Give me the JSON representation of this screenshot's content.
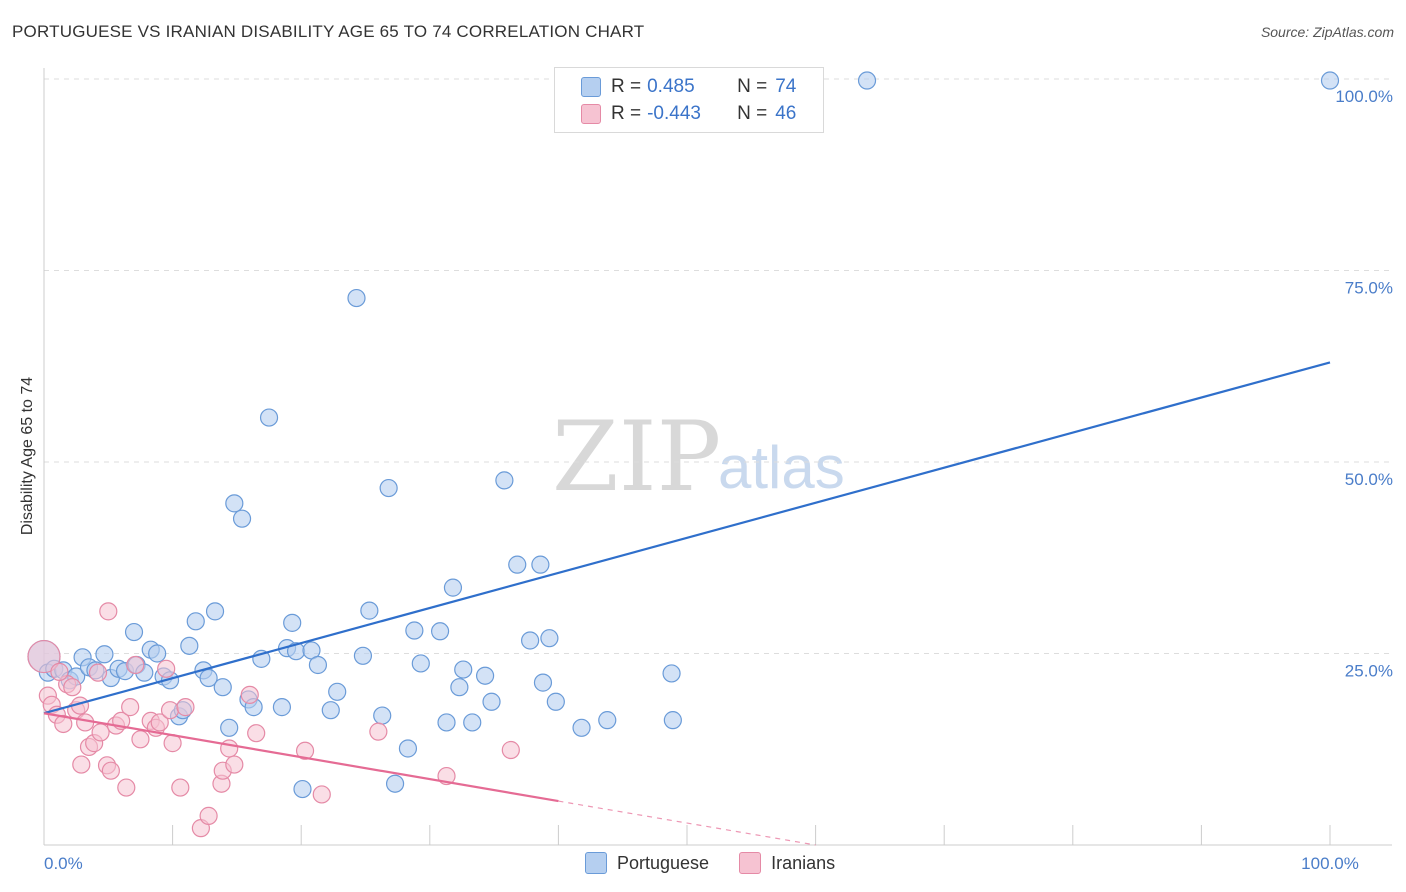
{
  "header": {
    "title": "PORTUGUESE VS IRANIAN DISABILITY AGE 65 TO 74 CORRELATION CHART",
    "source": "Source: ZipAtlas.com"
  },
  "watermark": {
    "zip": "ZIP",
    "atlas": "atlas"
  },
  "stats": {
    "r_label": "R =",
    "n_label": "N =",
    "portuguese": {
      "r": "0.485",
      "n": "74"
    },
    "iranians": {
      "r": "-0.443",
      "n": "46"
    }
  },
  "legend": {
    "portuguese": "Portuguese",
    "iranians": "Iranians"
  },
  "colors": {
    "portuguese_fill": "#b5cff0",
    "portuguese_stroke": "#6a9bd8",
    "portuguese_line": "#2f6fcb",
    "iranians_fill": "#f6c3d2",
    "iranians_stroke": "#e58aa6",
    "iranians_line": "#e56b94",
    "tick_text": "#4a7dc9",
    "grid": "#dddddd"
  },
  "chart_data": {
    "type": "scatter",
    "title": "PORTUGUESE VS IRANIAN DISABILITY AGE 65 TO 74 CORRELATION CHART",
    "xlabel": "",
    "ylabel": "Disability Age 65 to 74",
    "xlim": [
      0,
      100
    ],
    "ylim": [
      0,
      100
    ],
    "x_tick_labels": [
      {
        "v": 0,
        "label": "0.0%"
      },
      {
        "v": 100,
        "label": "100.0%"
      }
    ],
    "y_tick_labels": [
      {
        "v": 25,
        "label": "25.0%"
      },
      {
        "v": 50,
        "label": "50.0%"
      },
      {
        "v": 75,
        "label": "75.0%"
      },
      {
        "v": 100,
        "label": "100.0%"
      }
    ],
    "legend_position": "bottom",
    "series": [
      {
        "name": "Portuguese",
        "r": 0.485,
        "n": 74,
        "trend": {
          "x": [
            0,
            100
          ],
          "y": [
            17.2,
            63.0
          ],
          "dashed_from": null
        },
        "points": [
          [
            0,
            24.6
          ],
          [
            0.3,
            22.5
          ],
          [
            0.8,
            23.0
          ],
          [
            1.5,
            22.8
          ],
          [
            2,
            21.5
          ],
          [
            2.5,
            22.0
          ],
          [
            3,
            24.5
          ],
          [
            3.5,
            23.2
          ],
          [
            4,
            22.8
          ],
          [
            4.7,
            24.9
          ],
          [
            5.2,
            21.8
          ],
          [
            5.8,
            23.0
          ],
          [
            6.3,
            22.7
          ],
          [
            7,
            27.8
          ],
          [
            7.2,
            23.5
          ],
          [
            7.8,
            22.5
          ],
          [
            8.3,
            25.5
          ],
          [
            8.8,
            25.0
          ],
          [
            9.3,
            22.0
          ],
          [
            9.8,
            21.5
          ],
          [
            10.5,
            16.8
          ],
          [
            10.8,
            17.6
          ],
          [
            11.3,
            26.0
          ],
          [
            11.8,
            29.2
          ],
          [
            12.4,
            22.8
          ],
          [
            12.8,
            21.8
          ],
          [
            13.3,
            30.5
          ],
          [
            13.9,
            20.6
          ],
          [
            14.4,
            15.3
          ],
          [
            14.8,
            44.6
          ],
          [
            15.4,
            42.6
          ],
          [
            15.9,
            19.0
          ],
          [
            16.3,
            18.0
          ],
          [
            16.9,
            24.3
          ],
          [
            17.5,
            55.8
          ],
          [
            18.5,
            18.0
          ],
          [
            18.9,
            25.7
          ],
          [
            19.3,
            29.0
          ],
          [
            19.6,
            25.3
          ],
          [
            20.1,
            7.3
          ],
          [
            20.8,
            25.4
          ],
          [
            21.3,
            23.5
          ],
          [
            22.3,
            17.6
          ],
          [
            22.8,
            20.0
          ],
          [
            24.3,
            71.4
          ],
          [
            24.8,
            24.7
          ],
          [
            25.3,
            30.6
          ],
          [
            26.3,
            16.9
          ],
          [
            26.8,
            46.6
          ],
          [
            27.3,
            8.0
          ],
          [
            28.3,
            12.6
          ],
          [
            28.8,
            28.0
          ],
          [
            29.3,
            23.7
          ],
          [
            30.8,
            27.9
          ],
          [
            31.3,
            16.0
          ],
          [
            31.8,
            33.6
          ],
          [
            32.3,
            20.6
          ],
          [
            32.6,
            22.9
          ],
          [
            33.3,
            16.0
          ],
          [
            34.3,
            22.1
          ],
          [
            34.8,
            18.7
          ],
          [
            35.8,
            47.6
          ],
          [
            36.8,
            36.6
          ],
          [
            37.8,
            26.7
          ],
          [
            38.6,
            36.6
          ],
          [
            38.8,
            21.2
          ],
          [
            39.3,
            27.0
          ],
          [
            39.8,
            18.7
          ],
          [
            41.8,
            15.3
          ],
          [
            43.8,
            16.3
          ],
          [
            48.8,
            22.4
          ],
          [
            48.9,
            16.3
          ],
          [
            64,
            99.8
          ],
          [
            100,
            99.8
          ]
        ]
      },
      {
        "name": "Iranians",
        "r": -0.443,
        "n": 46,
        "trend": {
          "x": [
            0,
            60
          ],
          "y": [
            17.2,
            0.0
          ],
          "dashed_from": 40
        },
        "points": [
          [
            0,
            24.6
          ],
          [
            0.3,
            19.5
          ],
          [
            0.6,
            18.3
          ],
          [
            1,
            17.0
          ],
          [
            1.5,
            15.8
          ],
          [
            1.8,
            21.0
          ],
          [
            2.2,
            20.6
          ],
          [
            2.5,
            17.6
          ],
          [
            2.9,
            10.5
          ],
          [
            3.2,
            16.0
          ],
          [
            3.5,
            12.8
          ],
          [
            3.9,
            13.3
          ],
          [
            4.2,
            22.5
          ],
          [
            4.4,
            14.7
          ],
          [
            4.9,
            10.4
          ],
          [
            5.2,
            9.7
          ],
          [
            5.6,
            15.6
          ],
          [
            6.0,
            16.2
          ],
          [
            6.4,
            7.5
          ],
          [
            6.7,
            18.0
          ],
          [
            7.1,
            23.5
          ],
          [
            7.5,
            13.8
          ],
          [
            8.3,
            16.2
          ],
          [
            8.7,
            15.3
          ],
          [
            9.0,
            16.0
          ],
          [
            9.5,
            23.0
          ],
          [
            9.8,
            17.6
          ],
          [
            10.0,
            13.3
          ],
          [
            10.6,
            7.5
          ],
          [
            12.2,
            2.2
          ],
          [
            12.8,
            3.8
          ],
          [
            13.8,
            8.0
          ],
          [
            13.9,
            9.7
          ],
          [
            14.4,
            12.6
          ],
          [
            14.8,
            10.5
          ],
          [
            16.0,
            19.6
          ],
          [
            16.5,
            14.6
          ],
          [
            20.3,
            12.3
          ],
          [
            21.6,
            6.6
          ],
          [
            26.0,
            14.8
          ],
          [
            31.3,
            9.0
          ],
          [
            36.3,
            12.4
          ],
          [
            5.0,
            30.5
          ],
          [
            2.8,
            18.2
          ],
          [
            1.2,
            22.6
          ],
          [
            11.0,
            18.0
          ]
        ]
      }
    ]
  }
}
